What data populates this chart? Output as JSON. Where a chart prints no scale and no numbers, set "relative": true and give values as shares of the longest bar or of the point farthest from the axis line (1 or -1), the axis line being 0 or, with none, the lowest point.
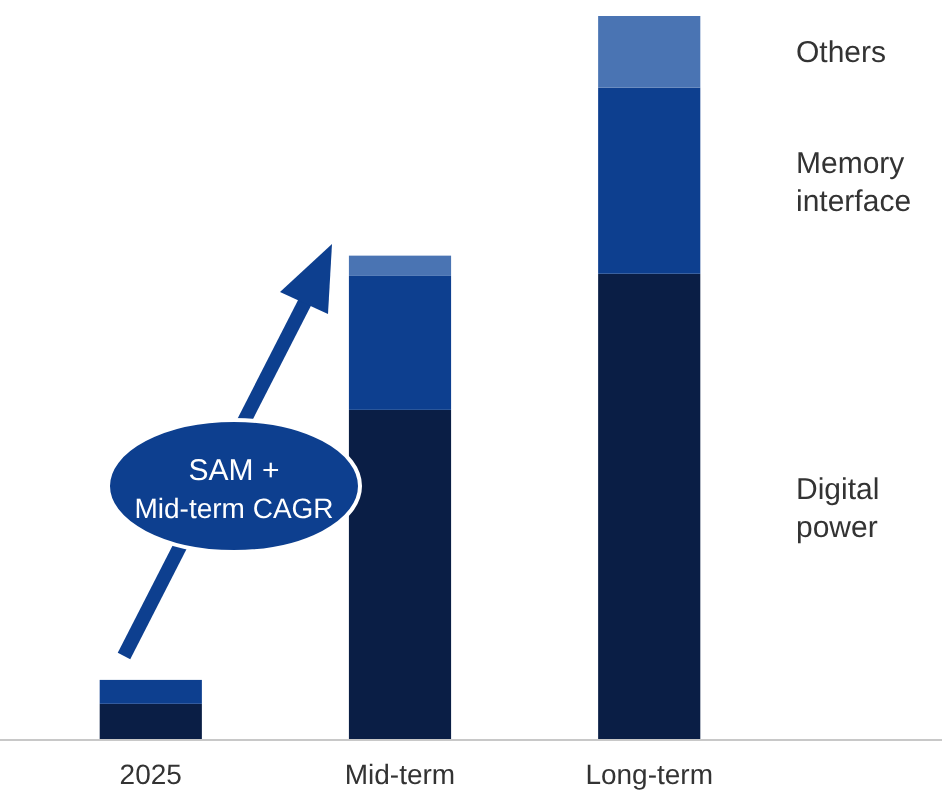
{
  "chart_data": {
    "type": "bar",
    "stacked": true,
    "relative": true,
    "categories": [
      "2025",
      "Mid-term",
      "Long-term"
    ],
    "series": [
      {
        "name": "Digital power",
        "color": "#0a1e45",
        "values": [
          0.05,
          0.456,
          0.644
        ]
      },
      {
        "name": "Memory interface",
        "color": "#0d3f8f",
        "values": [
          0.033,
          0.185,
          0.257
        ]
      },
      {
        "name": "Others",
        "color": "#4a74b3",
        "values": [
          null,
          0.028,
          0.099
        ]
      }
    ],
    "annotations": [
      "SAM + Mid-term CAGR"
    ]
  }
}
